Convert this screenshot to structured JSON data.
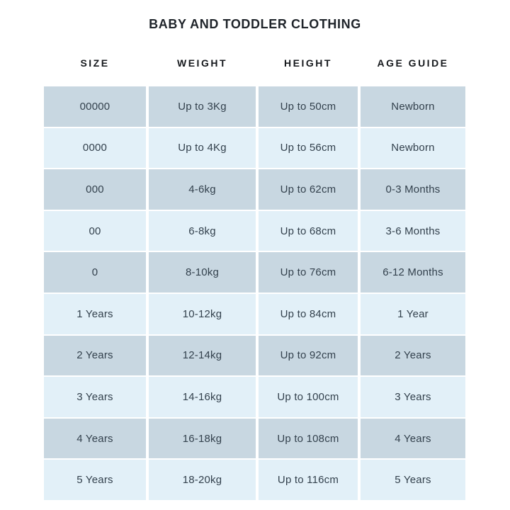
{
  "title": "BABY AND TODDLER CLOTHING",
  "table": {
    "columns": [
      "SIZE",
      "WEIGHT",
      "HEIGHT",
      "AGE GUIDE"
    ],
    "rows": [
      [
        "00000",
        "Up to 3Kg",
        "Up to 50cm",
        "Newborn"
      ],
      [
        "0000",
        "Up to 4Kg",
        "Up to 56cm",
        "Newborn"
      ],
      [
        "000",
        "4-6kg",
        "Up to 62cm",
        "0-3 Months"
      ],
      [
        "00",
        "6-8kg",
        "Up to 68cm",
        "3-6 Months"
      ],
      [
        "0",
        "8-10kg",
        "Up to 76cm",
        "6-12 Months"
      ],
      [
        "1 Years",
        "10-12kg",
        "Up to 84cm",
        "1 Year"
      ],
      [
        "2 Years",
        "12-14kg",
        "Up to 92cm",
        "2 Years"
      ],
      [
        "3 Years",
        "14-16kg",
        "Up to 100cm",
        "3 Years"
      ],
      [
        "4 Years",
        "16-18kg",
        "Up to 108cm",
        "4 Years"
      ],
      [
        "5 Years",
        "18-20kg",
        "Up to 116cm",
        "5 Years"
      ]
    ],
    "colors": {
      "row_dark": "#c8d7e1",
      "row_light": "#e2f0f8",
      "cell_text": "#33414d",
      "header_text": "#16191d",
      "title_text": "#1f242a",
      "page_background": "#ffffff"
    }
  }
}
